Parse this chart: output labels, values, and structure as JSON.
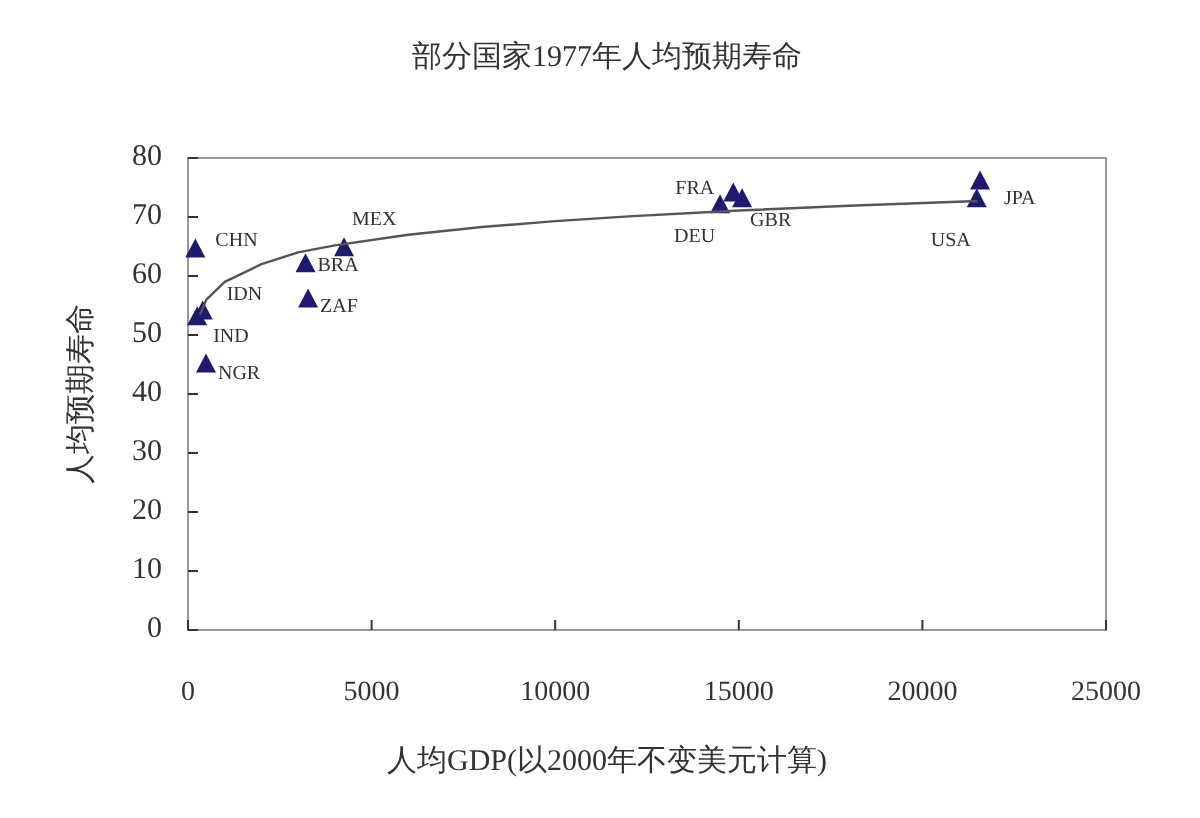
{
  "chart_data": {
    "type": "scatter",
    "title": "部分国家1977年人均预期寿命",
    "xlabel": "人均GDP(以2000年不变美元计算)",
    "ylabel": "人均预期寿命",
    "xlim": [
      0,
      25000
    ],
    "xticks": [
      0,
      5000,
      10000,
      15000,
      20000,
      25000
    ],
    "ylim": [
      0,
      80
    ],
    "yticks": [
      0,
      10,
      20,
      30,
      40,
      50,
      60,
      70,
      80
    ],
    "grid": false,
    "marker": "triangle",
    "series": [
      {
        "color": "#1f1a6e",
        "x": [
          200,
          400,
          250,
          490,
          3200,
          3270,
          4250,
          14850,
          14490,
          15090,
          21570,
          21480
        ],
        "values": [
          64.5,
          54,
          53,
          45,
          62,
          56,
          64.7,
          74,
          72,
          73,
          76,
          73
        ]
      },
      {
        "type": "line",
        "color": "#555555",
        "marker": "none",
        "line_style": "solid",
        "x": [
          330,
          500,
          1000,
          2000,
          3000,
          4000,
          6000,
          8000,
          10000,
          12000,
          15000,
          18000,
          21500
        ],
        "values": [
          53.5,
          56,
          59,
          62,
          64,
          65.2,
          67,
          68.3,
          69.3,
          70.1,
          71.1,
          71.9,
          72.7
        ]
      }
    ],
    "annotations": [
      {
        "text": "CHN",
        "x": 200,
        "y": 64.5
      },
      {
        "text": "IDN",
        "x": 400,
        "y": 54
      },
      {
        "text": "IND",
        "x": 250,
        "y": 53
      },
      {
        "text": "NGR",
        "x": 490,
        "y": 45
      },
      {
        "text": "BRA",
        "x": 3200,
        "y": 62
      },
      {
        "text": "ZAF",
        "x": 3270,
        "y": 56
      },
      {
        "text": "MEX",
        "x": 4250,
        "y": 64.7
      },
      {
        "text": "FRA",
        "x": 14850,
        "y": 74
      },
      {
        "text": "DEU",
        "x": 14490,
        "y": 72
      },
      {
        "text": "GBR",
        "x": 15090,
        "y": 73
      },
      {
        "text": "JPA",
        "x": 21570,
        "y": 76
      },
      {
        "text": "USA",
        "x": 21480,
        "y": 73
      }
    ]
  }
}
